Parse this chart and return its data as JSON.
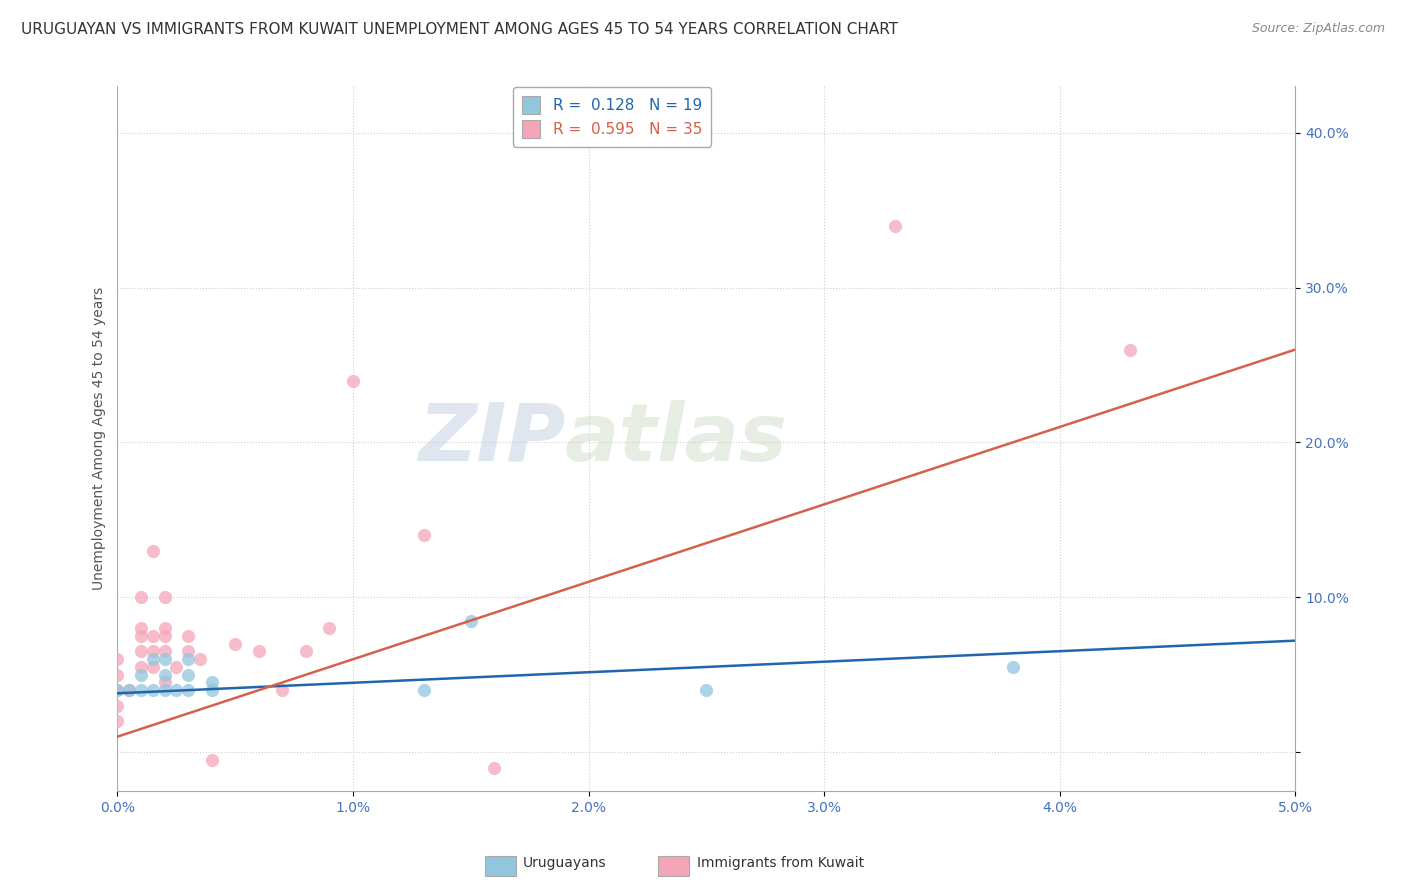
{
  "title": "URUGUAYAN VS IMMIGRANTS FROM KUWAIT UNEMPLOYMENT AMONG AGES 45 TO 54 YEARS CORRELATION CHART",
  "source": "Source: ZipAtlas.com",
  "ylabel": "Unemployment Among Ages 45 to 54 years",
  "xlim": [
    0.0,
    0.05
  ],
  "ylim": [
    -0.025,
    0.43
  ],
  "xticks": [
    0.0,
    0.01,
    0.02,
    0.03,
    0.04,
    0.05
  ],
  "xtick_labels": [
    "0.0%",
    "1.0%",
    "2.0%",
    "3.0%",
    "4.0%",
    "5.0%"
  ],
  "yticks": [
    0.0,
    0.1,
    0.2,
    0.3,
    0.4
  ],
  "ytick_labels": [
    "",
    "10.0%",
    "20.0%",
    "30.0%",
    "40.0%"
  ],
  "legend1_label": "R =  0.128   N = 19",
  "legend2_label": "R =  0.595   N = 35",
  "uruguayan_color": "#92c5de",
  "kuwait_color": "#f4a6b8",
  "uruguayan_line_color": "#2166ac",
  "kuwait_line_color": "#d6604d",
  "watermark_zip": "ZIP",
  "watermark_atlas": "atlas",
  "uruguayan_scatter_x": [
    0.0,
    0.0005,
    0.001,
    0.001,
    0.0015,
    0.0015,
    0.002,
    0.002,
    0.002,
    0.0025,
    0.003,
    0.003,
    0.003,
    0.004,
    0.004,
    0.013,
    0.015,
    0.025,
    0.038
  ],
  "uruguayan_scatter_y": [
    0.04,
    0.04,
    0.04,
    0.05,
    0.04,
    0.06,
    0.04,
    0.05,
    0.06,
    0.04,
    0.04,
    0.05,
    0.06,
    0.045,
    0.04,
    0.04,
    0.085,
    0.04,
    0.055
  ],
  "kuwait_scatter_x": [
    0.0,
    0.0,
    0.0,
    0.0,
    0.0,
    0.0005,
    0.001,
    0.001,
    0.001,
    0.001,
    0.001,
    0.0015,
    0.0015,
    0.0015,
    0.0015,
    0.002,
    0.002,
    0.002,
    0.002,
    0.002,
    0.0025,
    0.003,
    0.003,
    0.0035,
    0.004,
    0.005,
    0.006,
    0.007,
    0.008,
    0.009,
    0.01,
    0.013,
    0.016,
    0.033,
    0.043
  ],
  "kuwait_scatter_y": [
    0.02,
    0.03,
    0.04,
    0.05,
    0.06,
    0.04,
    0.055,
    0.065,
    0.075,
    0.08,
    0.1,
    0.055,
    0.065,
    0.075,
    0.13,
    0.045,
    0.065,
    0.075,
    0.08,
    0.1,
    0.055,
    0.065,
    0.075,
    0.06,
    -0.005,
    0.07,
    0.065,
    0.04,
    0.065,
    0.08,
    0.24,
    0.14,
    -0.01,
    0.34,
    0.26
  ],
  "uruguayan_trend_x": [
    0.0,
    0.05
  ],
  "uruguayan_trend_y": [
    0.038,
    0.072
  ],
  "kuwait_trend_x": [
    0.0,
    0.05
  ],
  "kuwait_trend_y": [
    0.01,
    0.26
  ],
  "background_color": "#ffffff",
  "grid_color": "#d0d0d0",
  "title_fontsize": 11,
  "axis_label_fontsize": 10,
  "tick_fontsize": 10,
  "legend_fontsize": 11,
  "scatter_size": 90
}
